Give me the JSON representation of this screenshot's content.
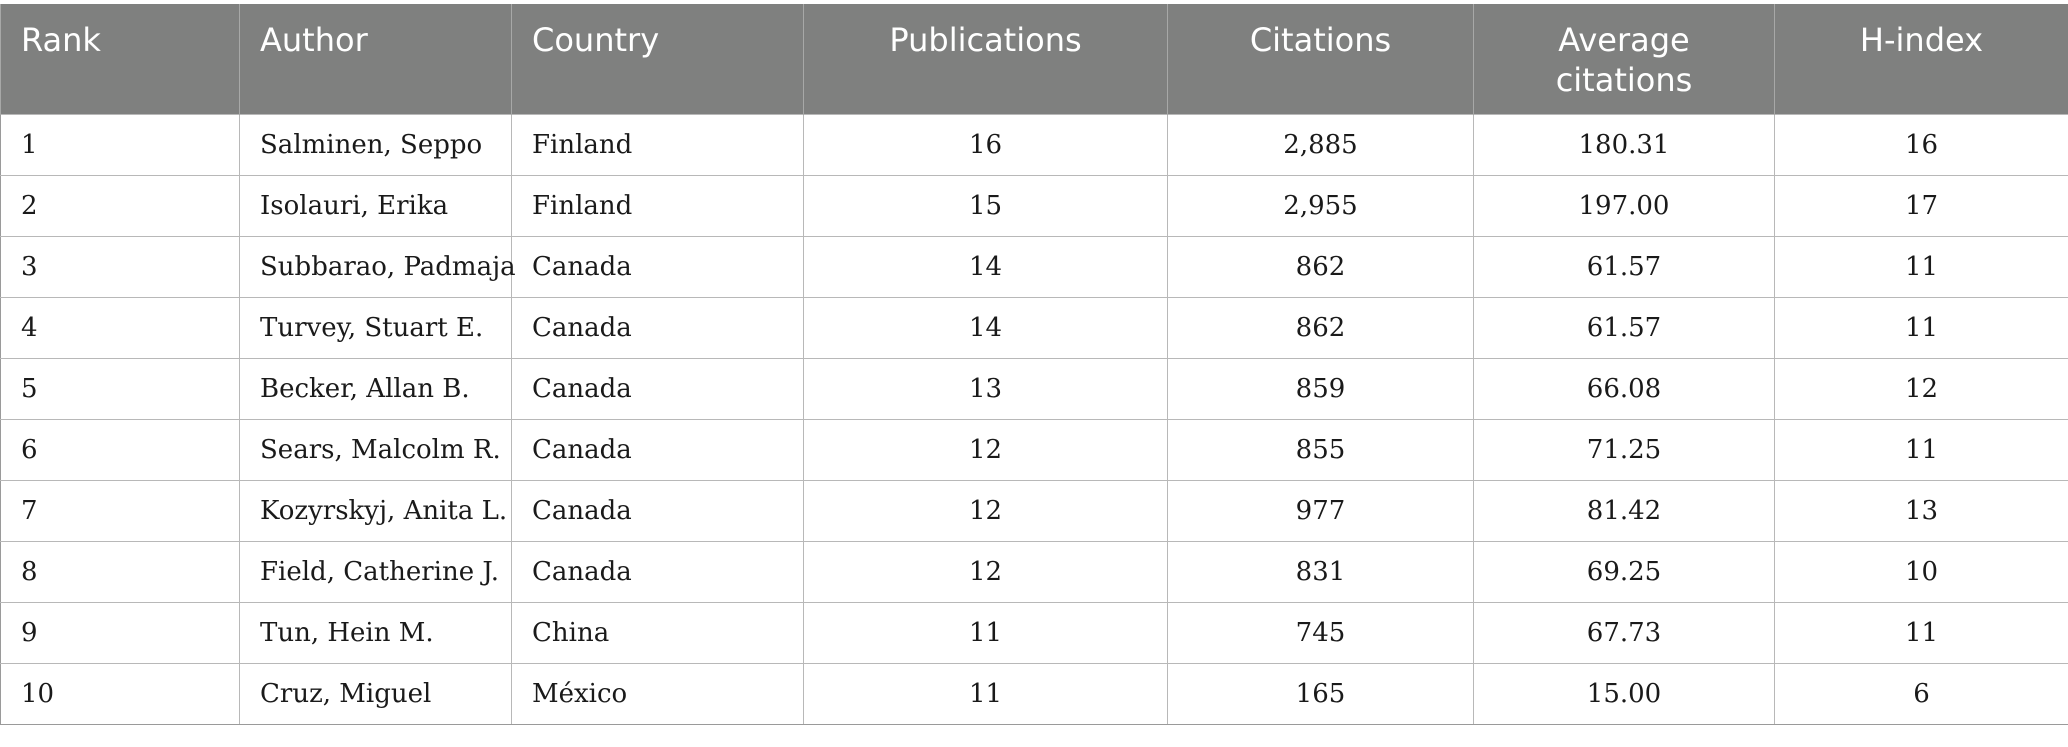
{
  "table": {
    "headers": {
      "rank": "Rank",
      "author": "Author",
      "country": "Country",
      "publications": "Publications",
      "citations": "Citations",
      "average_citations_line1": "Average",
      "average_citations_line2": "citations",
      "h_index": "H-index"
    },
    "rows": [
      {
        "rank": "1",
        "author": "Salminen, Seppo",
        "country": "Finland",
        "publications": "16",
        "citations": "2,885",
        "average_citations": "180.31",
        "h_index": "16"
      },
      {
        "rank": "2",
        "author": "Isolauri, Erika",
        "country": "Finland",
        "publications": "15",
        "citations": "2,955",
        "average_citations": "197.00",
        "h_index": "17"
      },
      {
        "rank": "3",
        "author": "Subbarao, Padmaja",
        "country": "Canada",
        "publications": "14",
        "citations": "862",
        "average_citations": "61.57",
        "h_index": "11"
      },
      {
        "rank": "4",
        "author": "Turvey, Stuart E.",
        "country": "Canada",
        "publications": "14",
        "citations": "862",
        "average_citations": "61.57",
        "h_index": "11"
      },
      {
        "rank": "5",
        "author": "Becker, Allan B.",
        "country": "Canada",
        "publications": "13",
        "citations": "859",
        "average_citations": "66.08",
        "h_index": "12"
      },
      {
        "rank": "6",
        "author": "Sears, Malcolm R.",
        "country": "Canada",
        "publications": "12",
        "citations": "855",
        "average_citations": "71.25",
        "h_index": "11"
      },
      {
        "rank": "7",
        "author": "Kozyrskyj, Anita L.",
        "country": "Canada",
        "publications": "12",
        "citations": "977",
        "average_citations": "81.42",
        "h_index": "13"
      },
      {
        "rank": "8",
        "author": "Field, Catherine J.",
        "country": "Canada",
        "publications": "12",
        "citations": "831",
        "average_citations": "69.25",
        "h_index": "10"
      },
      {
        "rank": "9",
        "author": "Tun, Hein M.",
        "country": "China",
        "publications": "11",
        "citations": "745",
        "average_citations": "67.73",
        "h_index": "11"
      },
      {
        "rank": "10",
        "author": "Cruz, Miguel",
        "country": "México",
        "publications": "11",
        "citations": "165",
        "average_citations": "15.00",
        "h_index": "6"
      }
    ]
  },
  "colors": {
    "header_background": "#7f807f",
    "header_text": "#ffffff",
    "grid_line": "#b8b8b8"
  }
}
